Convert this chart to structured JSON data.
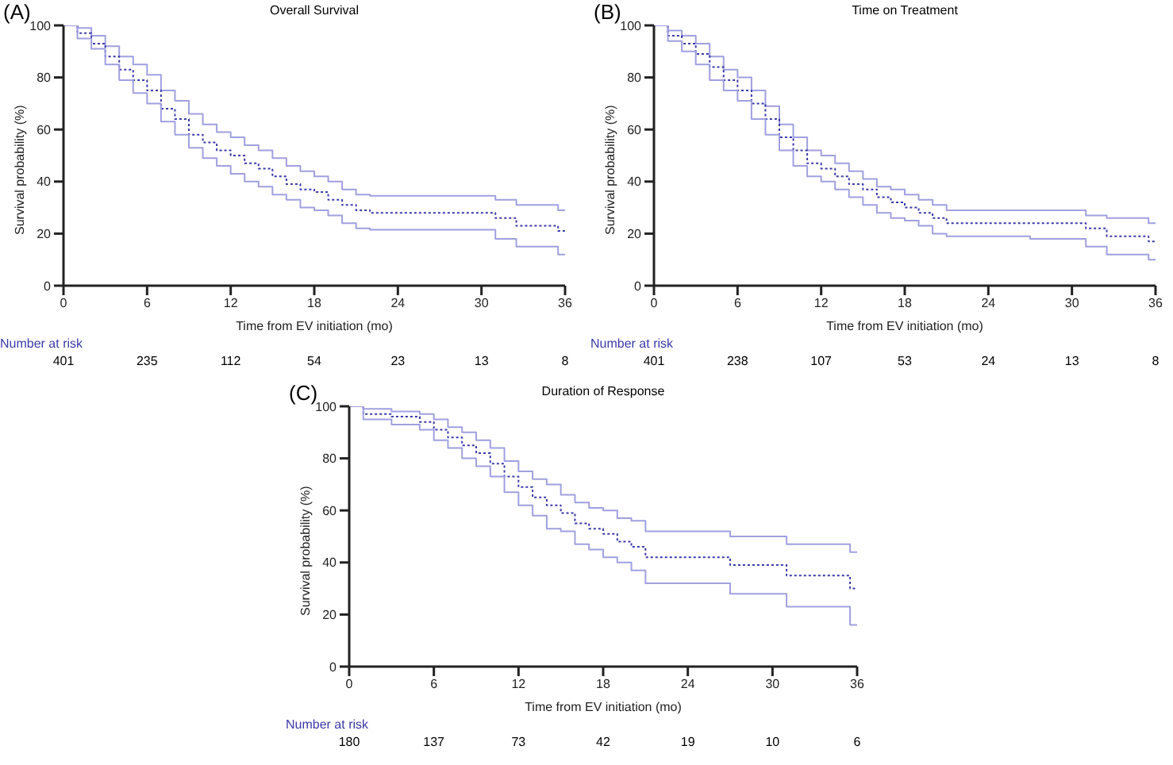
{
  "chart_data": [
    {
      "type": "step",
      "title": "Overall Survival",
      "xlabel": "Time from EV initiation (mo)",
      "ylabel": "Survival probability (%)",
      "xlim": [
        0,
        36
      ],
      "xticks": [
        0,
        6,
        12,
        18,
        24,
        30,
        36
      ],
      "ylim": [
        0,
        100
      ],
      "yticks": [
        0,
        20,
        40,
        60,
        80,
        100
      ],
      "marker": "none",
      "annotations": [
        "(A)",
        "Number at risk",
        "401",
        "235",
        "112",
        "54",
        "23",
        "13",
        "8"
      ],
      "series": [
        {
          "color": "#a0a0e0",
          "line_style": "solid",
          "x": [
            0,
            1,
            2,
            3,
            4,
            5,
            6,
            7,
            8,
            9,
            10,
            11,
            12,
            13,
            14,
            15,
            16,
            17,
            18,
            19,
            20,
            21,
            22,
            31,
            32.5,
            35.5,
            36
          ],
          "values": [
            100,
            99,
            96,
            92,
            88,
            85,
            81,
            75,
            71,
            66,
            62,
            59,
            57,
            54,
            52,
            49,
            46,
            44,
            42,
            40,
            37,
            35,
            34.5,
            33,
            31,
            29,
            29
          ]
        },
        {
          "color": "#3a3aa8",
          "line_style": "dotted",
          "x": [
            0,
            1,
            2,
            3,
            4,
            5,
            6,
            7,
            8,
            9,
            10,
            11,
            12,
            13,
            14,
            15,
            16,
            17,
            18,
            19,
            20,
            21,
            22,
            31,
            32.5,
            35.5,
            36
          ],
          "values": [
            100,
            97,
            93,
            88,
            83,
            79,
            75,
            68,
            64,
            58,
            55,
            52,
            50,
            47,
            45,
            42,
            39,
            37,
            36,
            33,
            31,
            29,
            28,
            26,
            23,
            21,
            21
          ]
        },
        {
          "color": "#a0a0e0",
          "line_style": "solid",
          "x": [
            0,
            1,
            2,
            3,
            4,
            5,
            6,
            7,
            8,
            9,
            10,
            11,
            12,
            13,
            14,
            15,
            16,
            17,
            18,
            19,
            20,
            21,
            22,
            31,
            32.5,
            35.5,
            36
          ],
          "values": [
            100,
            95,
            91,
            85,
            79,
            74,
            70,
            63,
            58,
            53,
            49,
            46,
            43,
            40,
            38,
            35,
            33,
            30,
            29,
            27,
            24,
            22,
            21.5,
            18,
            15,
            12,
            12
          ]
        }
      ]
    },
    {
      "type": "step",
      "title": "Time on Treatment",
      "xlabel": "Time from EV initiation (mo)",
      "ylabel": "Survival probability (%)",
      "xlim": [
        0,
        36
      ],
      "xticks": [
        0,
        6,
        12,
        18,
        24,
        30,
        36
      ],
      "ylim": [
        0,
        100
      ],
      "yticks": [
        0,
        20,
        40,
        60,
        80,
        100
      ],
      "marker": "none",
      "annotations": [
        "(B)",
        "Number at risk",
        "401",
        "238",
        "107",
        "53",
        "24",
        "13",
        "8"
      ],
      "series": [
        {
          "color": "#a0a0e0",
          "line_style": "solid",
          "x": [
            0,
            1,
            2,
            3,
            4,
            5,
            6,
            7,
            8,
            9,
            10,
            11,
            12,
            13,
            14,
            15,
            16,
            17,
            18,
            19,
            20,
            21,
            27,
            31,
            32.5,
            35.5,
            36
          ],
          "values": [
            100,
            98,
            96,
            93,
            88,
            83,
            80,
            75,
            69,
            62,
            57,
            52,
            50,
            47,
            44,
            41,
            38,
            37,
            35,
            33,
            31,
            29,
            29,
            27,
            26,
            24,
            24
          ]
        },
        {
          "color": "#3a3aa8",
          "line_style": "dotted",
          "x": [
            0,
            1,
            2,
            3,
            4,
            5,
            6,
            7,
            8,
            9,
            10,
            11,
            12,
            13,
            14,
            15,
            16,
            17,
            18,
            19,
            20,
            21,
            27,
            31,
            32.5,
            35.5,
            36
          ],
          "values": [
            100,
            96,
            93,
            89,
            84,
            79,
            75,
            70,
            64,
            57,
            52,
            47,
            45,
            42,
            39,
            37,
            34,
            32,
            30,
            28,
            26,
            24,
            24,
            22,
            19,
            17,
            17
          ]
        },
        {
          "color": "#a0a0e0",
          "line_style": "solid",
          "x": [
            0,
            1,
            2,
            3,
            4,
            5,
            6,
            7,
            8,
            9,
            10,
            11,
            12,
            13,
            14,
            15,
            16,
            17,
            18,
            19,
            20,
            21,
            27,
            31,
            32.5,
            35.5,
            36
          ],
          "values": [
            100,
            94,
            90,
            85,
            79,
            75,
            71,
            64,
            58,
            52,
            46,
            42,
            40,
            37,
            34,
            31,
            28,
            26,
            25,
            23,
            20,
            19,
            18,
            15,
            12,
            10,
            10
          ]
        }
      ]
    },
    {
      "type": "step",
      "title": "Duration of Response",
      "xlabel": "Time from EV initiation (mo)",
      "ylabel": "Survival probability (%)",
      "xlim": [
        0,
        36
      ],
      "xticks": [
        0,
        6,
        12,
        18,
        24,
        30,
        36
      ],
      "ylim": [
        0,
        100
      ],
      "yticks": [
        0,
        20,
        40,
        60,
        80,
        100
      ],
      "marker": "none",
      "annotations": [
        "(C)",
        "Number at risk",
        "180",
        "137",
        "73",
        "42",
        "19",
        "10",
        "6"
      ],
      "series": [
        {
          "color": "#a0a0e0",
          "line_style": "solid",
          "x": [
            0,
            1,
            3,
            5,
            6,
            7,
            8,
            9,
            10,
            11,
            12,
            13,
            14,
            15,
            16,
            17,
            18,
            19,
            20,
            21,
            27,
            31,
            35.5,
            36
          ],
          "values": [
            100,
            99,
            98,
            97,
            95,
            92,
            90,
            87,
            84,
            79,
            75,
            72,
            70,
            66,
            63,
            61,
            60,
            57,
            56,
            52,
            50,
            47,
            44,
            44
          ]
        },
        {
          "color": "#3a3aa8",
          "line_style": "dotted",
          "x": [
            0,
            1,
            3,
            5,
            6,
            7,
            8,
            9,
            10,
            11,
            12,
            13,
            14,
            15,
            16,
            17,
            18,
            19,
            20,
            21,
            27,
            31,
            35.5,
            36
          ],
          "values": [
            100,
            97,
            96,
            94,
            91,
            88,
            85,
            82,
            78,
            73,
            69,
            65,
            62,
            59,
            55,
            53,
            51,
            48,
            46,
            42,
            39,
            35,
            30,
            30
          ]
        },
        {
          "color": "#a0a0e0",
          "line_style": "solid",
          "x": [
            0,
            1,
            3,
            5,
            6,
            7,
            8,
            9,
            10,
            11,
            12,
            13,
            14,
            15,
            16,
            17,
            18,
            19,
            20,
            21,
            27,
            31,
            35.5,
            36
          ],
          "values": [
            100,
            95,
            93,
            91,
            87,
            84,
            80,
            77,
            73,
            67,
            62,
            58,
            53,
            52,
            47,
            45,
            42,
            40,
            37,
            32,
            28,
            23,
            16,
            16
          ]
        }
      ]
    }
  ]
}
